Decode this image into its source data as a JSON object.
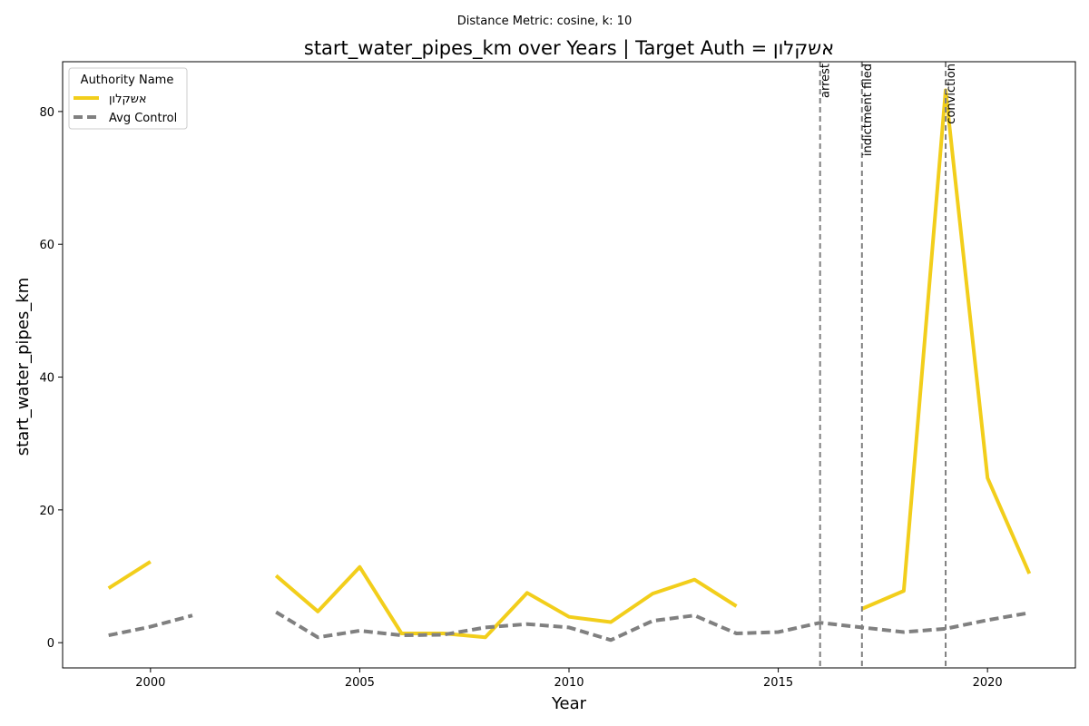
{
  "chart_data": {
    "type": "line",
    "suptitle": "Distance Metric: cosine, k: 10",
    "title": "start_water_pipes_km over Years | Target Auth = אשקלון",
    "xlabel": "Year",
    "ylabel": "start_water_pipes_km",
    "xlim": [
      1997.9,
      2022.1
    ],
    "ylim": [
      -3.8,
      87.5
    ],
    "x_ticks": [
      2000,
      2005,
      2010,
      2015,
      2020
    ],
    "y_ticks": [
      0,
      20,
      40,
      60,
      80
    ],
    "grid": false,
    "legend": {
      "title": "Authority Name",
      "placement": "top-left"
    },
    "series": [
      {
        "name": "אשקלון",
        "color": "#f2ce1b",
        "style": "solid",
        "points": [
          [
            1999,
            8.2
          ],
          [
            2000,
            12.2
          ],
          [
            2001,
            null
          ],
          [
            2002,
            null
          ],
          [
            2003,
            10.1
          ],
          [
            2004,
            4.7
          ],
          [
            2005,
            11.4
          ],
          [
            2006,
            1.4
          ],
          [
            2007,
            1.4
          ],
          [
            2008,
            0.8
          ],
          [
            2009,
            7.5
          ],
          [
            2010,
            3.9
          ],
          [
            2011,
            3.1
          ],
          [
            2012,
            7.4
          ],
          [
            2013,
            9.5
          ],
          [
            2014,
            5.5
          ],
          [
            2015,
            null
          ],
          [
            2016,
            null
          ],
          [
            2017,
            5.1
          ],
          [
            2018,
            7.8
          ],
          [
            2019,
            83.2
          ],
          [
            2020,
            24.8
          ],
          [
            2021,
            10.4
          ]
        ]
      },
      {
        "name": "Avg Control",
        "color": "#808080",
        "style": "dashed",
        "points": [
          [
            1999,
            1.1
          ],
          [
            2000,
            2.4
          ],
          [
            2001,
            4.1
          ],
          [
            2002,
            null
          ],
          [
            2003,
            4.6
          ],
          [
            2004,
            0.8
          ],
          [
            2005,
            1.8
          ],
          [
            2006,
            1.1
          ],
          [
            2007,
            1.2
          ],
          [
            2008,
            2.3
          ],
          [
            2009,
            2.8
          ],
          [
            2010,
            2.3
          ],
          [
            2011,
            0.4
          ],
          [
            2012,
            3.3
          ],
          [
            2013,
            4.1
          ],
          [
            2014,
            1.4
          ],
          [
            2015,
            1.6
          ],
          [
            2016,
            3.0
          ],
          [
            2017,
            2.3
          ],
          [
            2018,
            1.6
          ],
          [
            2019,
            2.1
          ],
          [
            2020,
            3.4
          ],
          [
            2021,
            4.5
          ]
        ]
      }
    ],
    "events": [
      {
        "x": 2016,
        "label": "arrest"
      },
      {
        "x": 2017,
        "label": "indictment filed"
      },
      {
        "x": 2019,
        "label": "conviction"
      }
    ],
    "event_line_color": "#808080"
  }
}
